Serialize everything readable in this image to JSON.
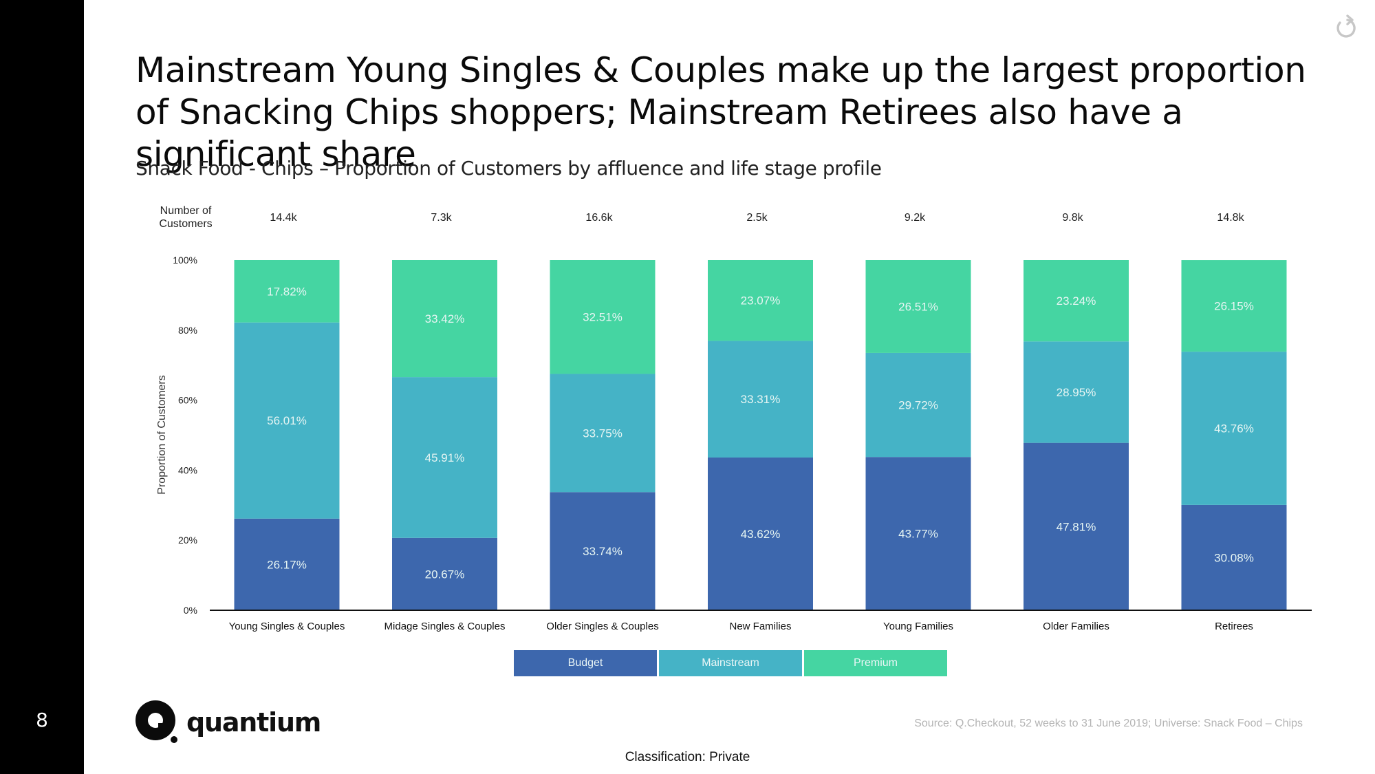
{
  "slide": {
    "page_number": "8",
    "title": "Mainstream Young Singles & Couples make up the largest proportion of Snacking Chips shoppers; Mainstream Retirees also have a significant share",
    "subtitle": "Snack Food - Chips – Proportion of Customers by affluence and life stage profile",
    "source": "Source: Q.Checkout, 52 weeks to 31 June 2019; Universe: Snack Food – Chips",
    "classification": "Classification: Private",
    "logo_text": "quantium",
    "reset_icon": "reset-icon"
  },
  "chart_data": {
    "type": "bar",
    "stacked": true,
    "percent_stacked": true,
    "title": "",
    "xlabel": "",
    "ylabel": "Proportion of Customers",
    "ylim": [
      0,
      100
    ],
    "yticks": [
      "0%",
      "20%",
      "40%",
      "60%",
      "80%",
      "100%"
    ],
    "grid": false,
    "legend_position": "bottom",
    "counts_label": "Number of Customers",
    "categories": [
      "Young Singles & Couples",
      "Midage Singles & Couples",
      "Older Singles & Couples",
      "New Families",
      "Young Families",
      "Older Families",
      "Retirees"
    ],
    "customer_counts": [
      "14.4k",
      "7.3k",
      "16.6k",
      "2.5k",
      "9.2k",
      "9.8k",
      "14.8k"
    ],
    "series": [
      {
        "name": "Budget",
        "color": "#3d67ad",
        "values": [
          26.17,
          20.67,
          33.74,
          43.62,
          43.77,
          47.81,
          30.08
        ]
      },
      {
        "name": "Mainstream",
        "color": "#45b3c6",
        "values": [
          56.01,
          45.91,
          33.75,
          33.31,
          29.72,
          28.95,
          43.76
        ]
      },
      {
        "name": "Premium",
        "color": "#45d5a2",
        "values": [
          17.82,
          33.42,
          32.51,
          23.07,
          26.51,
          23.24,
          26.15
        ]
      }
    ]
  }
}
